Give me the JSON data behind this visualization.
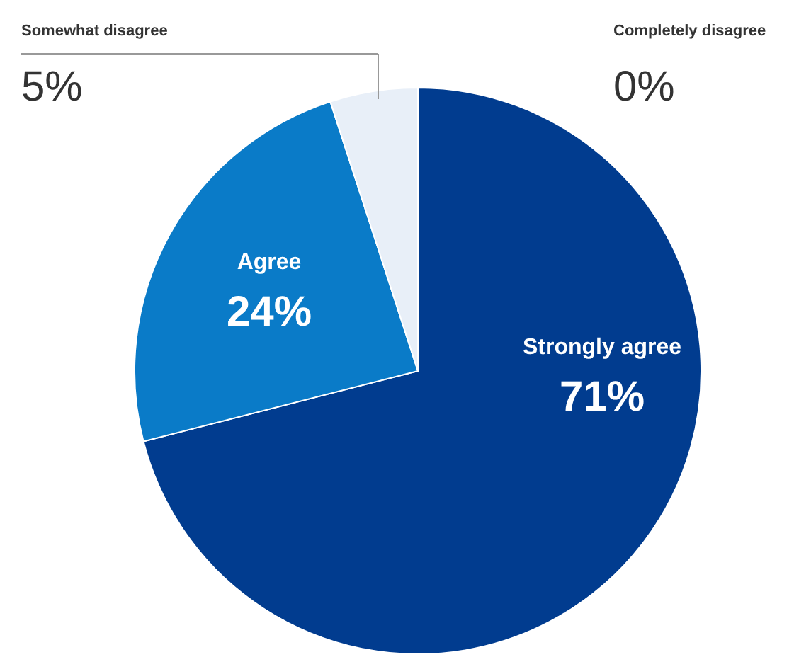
{
  "chart_data": {
    "type": "pie",
    "categories": [
      "Strongly agree",
      "Agree",
      "Somewhat disagree",
      "Completely disagree"
    ],
    "values": [
      71,
      24,
      5,
      0
    ],
    "colors": [
      "#013c8f",
      "#0a7bc8",
      "#e8eff8",
      "#c8d2de"
    ],
    "value_labels": [
      "71%",
      "24%",
      "5%",
      "0%"
    ]
  }
}
